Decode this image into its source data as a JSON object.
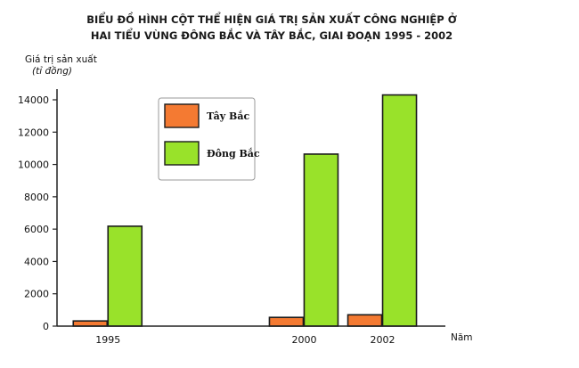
{
  "chart_data": {
    "type": "bar",
    "title_line1": "BIỂU ĐỒ HÌNH CỘT THỂ HIỆN GIÁ TRỊ SẢN XUẤT CÔNG NGHIỆP Ở",
    "title_line2": "HAI TIỂU VÙNG ĐÔNG BẮC VÀ TÂY BẮC, GIAI ĐOẠN 1995 - 2002",
    "ylabel": "Giá trị sản xuất",
    "yunit": "(tỉ đồng)",
    "xlabel": "Năm",
    "categories": [
      "1995",
      "2000",
      "2002"
    ],
    "x_values": [
      1995,
      2000,
      2002
    ],
    "ylim": [
      0,
      14000
    ],
    "yticks": [
      0,
      2000,
      4000,
      6000,
      8000,
      10000,
      12000,
      14000
    ],
    "series": [
      {
        "name": "Tây Bắc",
        "color": "#f47a32",
        "values": [
          320,
          540,
          700
        ]
      },
      {
        "name": "Đông Bắc",
        "color": "#99e22a",
        "values": [
          6180,
          10640,
          14300
        ]
      }
    ],
    "legend_position": "top-left",
    "grid": false
  }
}
